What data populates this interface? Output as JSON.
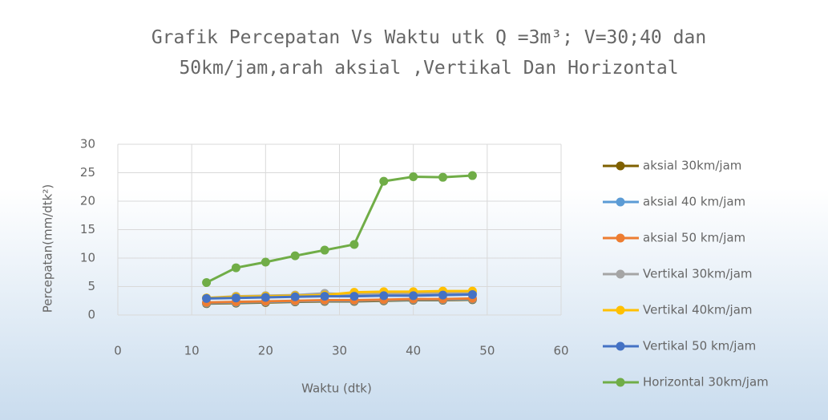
{
  "chart_data": {
    "type": "line",
    "title": "Grafik Percepatan Vs Waktu utk Q =3m³; V=30;40 dan 50km/jam,arah aksial ,Vertikal Dan Horizontal",
    "x_label": "Waktu (dtk)",
    "y_label": "Percepatan(mm/dtk²)",
    "x": [
      12,
      16,
      20,
      24,
      28,
      32,
      36,
      40,
      44,
      48
    ],
    "xlim": [
      0,
      60
    ],
    "xticks": [
      0,
      10,
      20,
      30,
      40,
      50,
      60
    ],
    "ylim": [
      0,
      30
    ],
    "yticks": [
      0,
      5,
      10,
      15,
      20,
      25,
      30
    ],
    "grid": true,
    "legend": "right",
    "series": [
      {
        "name": "aksial 30km/jam",
        "color": "#7f6000",
        "values": [
          2.0,
          2.1,
          2.2,
          2.3,
          2.4,
          2.4,
          2.5,
          2.6,
          2.6,
          2.7
        ]
      },
      {
        "name": "aksial 40 km/jam",
        "color": "#5b9bd5",
        "values": [
          2.1,
          2.2,
          2.3,
          2.4,
          2.5,
          2.5,
          2.6,
          2.7,
          2.7,
          2.8
        ]
      },
      {
        "name": "aksial 50 km/jam",
        "color": "#ed7d31",
        "values": [
          2.2,
          2.3,
          2.4,
          2.5,
          2.6,
          2.6,
          2.7,
          2.8,
          2.8,
          2.9
        ]
      },
      {
        "name": "Vertikal 30km/jam",
        "color": "#a5a5a5",
        "values": [
          3.0,
          3.3,
          3.4,
          3.5,
          3.8,
          3.6,
          3.7,
          3.8,
          3.8,
          3.9
        ]
      },
      {
        "name": "Vertikal 40km/jam",
        "color": "#ffc000",
        "values": [
          3.0,
          3.2,
          3.3,
          3.4,
          3.5,
          4.0,
          4.1,
          4.1,
          4.2,
          4.2
        ]
      },
      {
        "name": "Vertikal 50 km/jam",
        "color": "#4472c4",
        "values": [
          2.9,
          3.0,
          3.1,
          3.2,
          3.3,
          3.3,
          3.4,
          3.4,
          3.5,
          3.6
        ]
      },
      {
        "name": "Horizontal 30km/jam",
        "color": "#70ad47",
        "values": [
          5.7,
          8.3,
          9.3,
          10.4,
          11.4,
          12.4,
          23.5,
          24.3,
          24.2,
          24.5
        ]
      }
    ]
  }
}
